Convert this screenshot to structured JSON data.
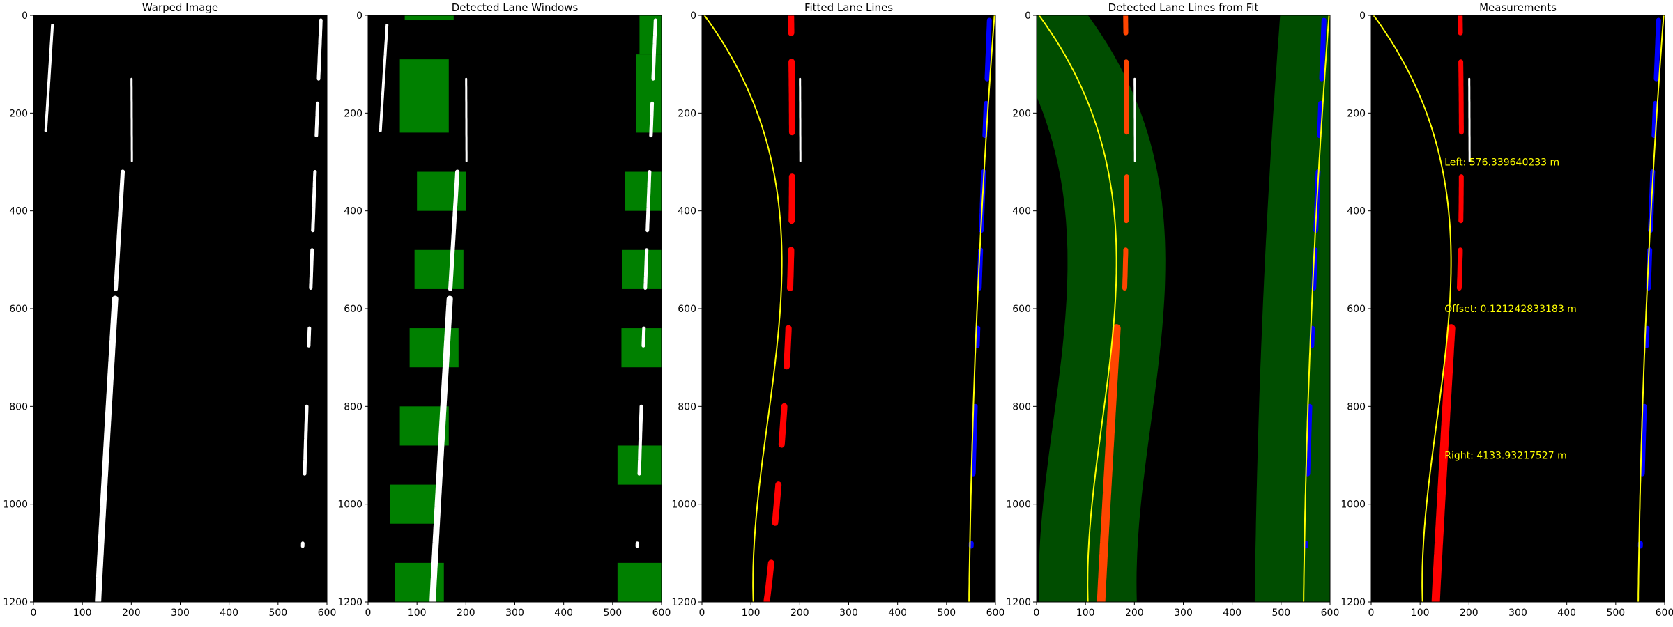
{
  "figure": {
    "panels": [
      {
        "id": "warped",
        "title": "Warped Image"
      },
      {
        "id": "windows",
        "title": "Detected Lane Windows"
      },
      {
        "id": "fitted",
        "title": "Fitted Lane Lines"
      },
      {
        "id": "fromfit",
        "title": "Detected Lane Lines from Fit"
      },
      {
        "id": "measure",
        "title": "Measurements"
      }
    ],
    "x_ticks": [
      "0",
      "100",
      "200",
      "300",
      "400",
      "500",
      "600"
    ],
    "y_ticks": [
      "0",
      "200",
      "400",
      "600",
      "800",
      "1000",
      "1200"
    ],
    "x_range": [
      0,
      600
    ],
    "y_range": [
      1200,
      0
    ],
    "measurements": {
      "left": "Left: 576.339640233 m",
      "offset": "Offset: 0.121242833183 m",
      "right": "Right: 4133.93217527 m"
    },
    "colors": {
      "background": "#000000",
      "lane_pixels": "#ffffff",
      "window": "#008000",
      "left_lane": "#ff0000",
      "left_lane_fromfit": "#ff4500",
      "right_lane": "#0000ff",
      "fit_line": "#ffff00",
      "fit_band": "#004d00",
      "text": "#ffff00"
    }
  }
}
